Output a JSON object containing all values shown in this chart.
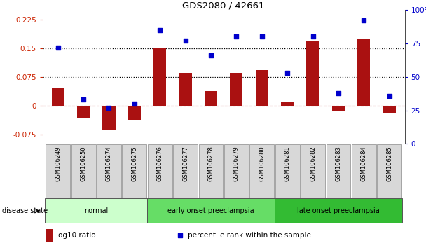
{
  "title": "GDS2080 / 42661",
  "samples": [
    "GSM106249",
    "GSM106250",
    "GSM106274",
    "GSM106275",
    "GSM106276",
    "GSM106277",
    "GSM106278",
    "GSM106279",
    "GSM106280",
    "GSM106281",
    "GSM106282",
    "GSM106283",
    "GSM106284",
    "GSM106285"
  ],
  "log10_ratio": [
    0.045,
    -0.032,
    -0.065,
    -0.038,
    0.15,
    0.085,
    0.038,
    0.085,
    0.093,
    0.01,
    0.168,
    -0.015,
    0.175,
    -0.018
  ],
  "percentile_rank": [
    72,
    33,
    27,
    30,
    85,
    77,
    66,
    80,
    80,
    53,
    80,
    38,
    92,
    36
  ],
  "groups": [
    {
      "label": "normal",
      "start": 0,
      "end": 4,
      "color": "#ccffcc"
    },
    {
      "label": "early onset preeclampsia",
      "start": 4,
      "end": 9,
      "color": "#66dd66"
    },
    {
      "label": "late onset preeclampsia",
      "start": 9,
      "end": 14,
      "color": "#33bb33"
    }
  ],
  "ylim_left": [
    -0.1,
    0.25
  ],
  "ylim_right": [
    0,
    100
  ],
  "yticks_left": [
    -0.075,
    0,
    0.075,
    0.15,
    0.225
  ],
  "yticks_right": [
    0,
    25,
    50,
    75,
    100
  ],
  "hlines": [
    0.075,
    0.15
  ],
  "bar_color": "#aa1111",
  "scatter_color": "#0000cc",
  "bar_width": 0.5,
  "background_color": "#ffffff",
  "ylabel_left_color": "#cc2200",
  "ylabel_right_color": "#0000cc",
  "legend_log10": "log10 ratio",
  "legend_percentile": "percentile rank within the sample",
  "label_area_color": "#c8c8c8",
  "label_box_color": "#d8d8d8"
}
